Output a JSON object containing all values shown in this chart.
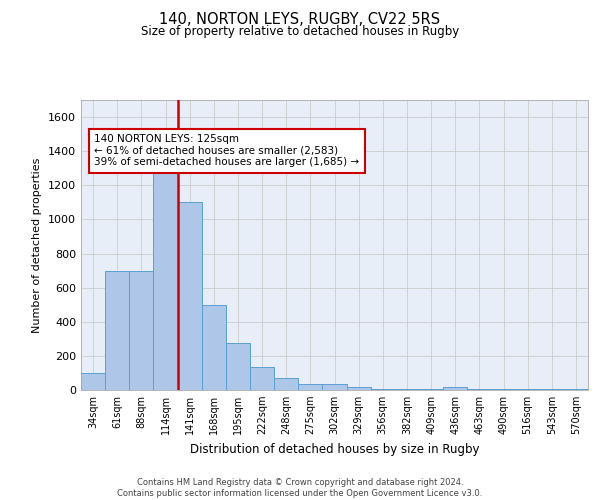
{
  "title": "140, NORTON LEYS, RUGBY, CV22 5RS",
  "subtitle": "Size of property relative to detached houses in Rugby",
  "xlabel": "Distribution of detached houses by size in Rugby",
  "ylabel": "Number of detached properties",
  "bar_color": "#aec6e8",
  "bar_edge_color": "#5a9fd4",
  "grid_color": "#cccccc",
  "bg_color": "#e8eef8",
  "annotation_line_color": "#cc0000",
  "annotation_box_color": "#cc0000",
  "annotation_text": "140 NORTON LEYS: 125sqm\n← 61% of detached houses are smaller (2,583)\n39% of semi-detached houses are larger (1,685) →",
  "footer": "Contains HM Land Registry data © Crown copyright and database right 2024.\nContains public sector information licensed under the Open Government Licence v3.0.",
  "categories": [
    "34sqm",
    "61sqm",
    "88sqm",
    "114sqm",
    "141sqm",
    "168sqm",
    "195sqm",
    "222sqm",
    "248sqm",
    "275sqm",
    "302sqm",
    "329sqm",
    "356sqm",
    "382sqm",
    "409sqm",
    "436sqm",
    "463sqm",
    "490sqm",
    "516sqm",
    "543sqm",
    "570sqm"
  ],
  "values": [
    100,
    700,
    700,
    1325,
    1100,
    500,
    275,
    135,
    70,
    35,
    35,
    15,
    5,
    5,
    5,
    15,
    5,
    5,
    5,
    5,
    5
  ],
  "property_bin_index": 3,
  "ylim": [
    0,
    1700
  ],
  "yticks": [
    0,
    200,
    400,
    600,
    800,
    1000,
    1200,
    1400,
    1600
  ]
}
